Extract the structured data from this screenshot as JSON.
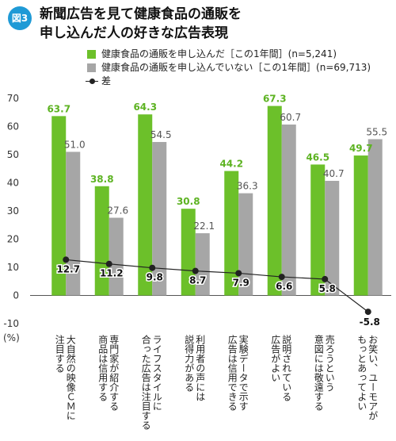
{
  "figure": {
    "badge": "図3",
    "title_line1": "新聞広告を見て健康食品の通販を",
    "title_line2": "申し込んだ人の好きな広告表現"
  },
  "legend": {
    "green": "健康食品の通販を申し込んだ［この1年間］(n=5,241)",
    "gray": "健康食品の通販を申し込んでいない［この1年間］(n=69,713)",
    "line": "差"
  },
  "colors": {
    "green": "#6cc02a",
    "gray": "#a6a6a6",
    "line": "#222222",
    "label_green": "#5db322"
  },
  "chart_data": {
    "type": "bar",
    "unit_label": "(%)",
    "ylim": [
      -10,
      70
    ],
    "yticks": [
      -10,
      0,
      10,
      20,
      30,
      40,
      50,
      60,
      70
    ],
    "categories": [
      "大自然の映像ＣＭに注目する",
      "専門家が紹介する商品は信用する",
      "ライフスタイルに合った広告は注目する",
      "利用者の声には説得力がある",
      "実験データで示す広告は信用できる",
      "説明されている広告がよい",
      "売ろうという意図には敬遠する",
      "お笑い、ユーモアがもっとあってよい"
    ],
    "category_lines": [
      [
        "大自然の映像ＣＭに",
        "注目する"
      ],
      [
        "専門家が紹介する",
        "商品は信用する"
      ],
      [
        "ライフスタイルに",
        "合った広告は注目する"
      ],
      [
        "利用者の声には",
        "説得力がある"
      ],
      [
        "実験データで示す",
        "広告は信用できる"
      ],
      [
        "説明されている",
        "広告がよい"
      ],
      [
        "売ろうという",
        "意図には敬遠する"
      ],
      [
        "お笑い、ユーモアが",
        "もっとあってよい"
      ]
    ],
    "series": [
      {
        "name": "健康食品の通販を申し込んだ［この1年間］(n=5,241)",
        "kind": "bar",
        "values": [
          63.7,
          38.8,
          64.3,
          30.8,
          44.2,
          67.3,
          46.5,
          49.7
        ]
      },
      {
        "name": "健康食品の通販を申し込んでいない［この1年間］(n=69,713)",
        "kind": "bar",
        "values": [
          51.0,
          27.6,
          54.5,
          22.1,
          36.3,
          60.7,
          40.7,
          55.5
        ]
      },
      {
        "name": "差",
        "kind": "line",
        "values": [
          12.7,
          11.2,
          9.8,
          8.7,
          7.9,
          6.6,
          5.8,
          -5.8
        ]
      }
    ],
    "grid": false,
    "legend_position": "top"
  }
}
